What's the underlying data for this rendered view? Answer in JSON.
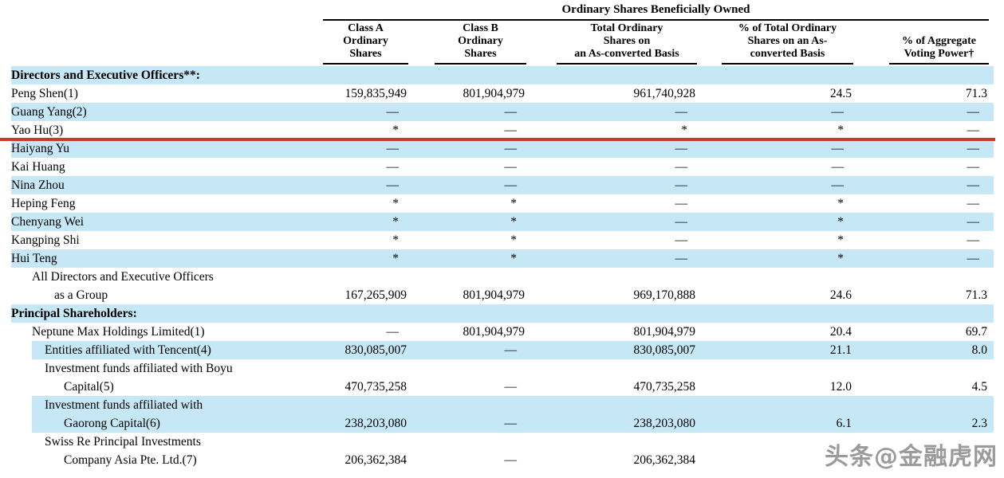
{
  "page": {
    "watermark": "头条@金融虎网"
  },
  "colors": {
    "highlight": "#c6e7f6",
    "red_line": "#c43a2f",
    "watermark": "#9b9b9b",
    "text": "#000000"
  },
  "table": {
    "span_header": "Ordinary Shares Beneficially Owned",
    "columns": [
      {
        "id": "class_a",
        "label_lines": [
          "Class A",
          "Ordinary",
          "Shares"
        ]
      },
      {
        "id": "class_b",
        "label_lines": [
          "Class B",
          "Ordinary",
          "Shares"
        ]
      },
      {
        "id": "total",
        "label_lines": [
          "Total Ordinary",
          "Shares on",
          "an As-converted Basis"
        ]
      },
      {
        "id": "pct_total",
        "label_lines": [
          "% of Total Ordinary",
          "Shares on an As-",
          "converted Basis"
        ]
      },
      {
        "id": "voting",
        "label_lines": [
          "% of Aggregate",
          "Voting Power†"
        ]
      }
    ],
    "rows": [
      {
        "lines": [
          "Directors and Executive Officers**:"
        ],
        "indents": [
          0
        ],
        "bold": true,
        "highlight": true,
        "values": [
          "",
          "",
          "",
          "",
          ""
        ]
      },
      {
        "lines": [
          "Peng Shen(1)"
        ],
        "indents": [
          0
        ],
        "values": [
          "159,835,949",
          "801,904,979",
          "961,740,928",
          "24.5",
          "71.3"
        ]
      },
      {
        "lines": [
          "Guang Yang(2)"
        ],
        "indents": [
          0
        ],
        "highlight": true,
        "values": [
          "—",
          "—",
          "—",
          "—",
          "—"
        ]
      },
      {
        "lines": [
          "Yao Hu(3)"
        ],
        "indents": [
          0
        ],
        "values": [
          "*",
          "—",
          "*",
          "*",
          "—"
        ],
        "red_line_below": true
      },
      {
        "lines": [
          "Haiyang Yu"
        ],
        "indents": [
          0
        ],
        "highlight": true,
        "values": [
          "—",
          "—",
          "—",
          "—",
          "—"
        ]
      },
      {
        "lines": [
          "Kai Huang"
        ],
        "indents": [
          0
        ],
        "values": [
          "—",
          "—",
          "—",
          "—",
          "—"
        ]
      },
      {
        "lines": [
          "Nina Zhou"
        ],
        "indents": [
          0
        ],
        "highlight": true,
        "values": [
          "—",
          "—",
          "—",
          "—",
          "—"
        ]
      },
      {
        "lines": [
          "Heping Feng"
        ],
        "indents": [
          0
        ],
        "values": [
          "*",
          "*",
          "—",
          "*",
          "—"
        ]
      },
      {
        "lines": [
          "Chenyang Wei"
        ],
        "indents": [
          0
        ],
        "highlight": true,
        "values": [
          "*",
          "*",
          "—",
          "*",
          "—"
        ]
      },
      {
        "lines": [
          "Kangping Shi"
        ],
        "indents": [
          0
        ],
        "values": [
          "*",
          "*",
          "—",
          "*",
          "—"
        ]
      },
      {
        "lines": [
          "Hui Teng"
        ],
        "indents": [
          0
        ],
        "highlight": true,
        "values": [
          "*",
          "*",
          "—",
          "*",
          "—"
        ]
      },
      {
        "lines": [
          "All Directors and Executive Officers",
          "as a Group"
        ],
        "indents": [
          26,
          54
        ],
        "values": [
          "167,265,909",
          "801,904,979",
          "969,170,888",
          "24.6",
          "71.3"
        ]
      },
      {
        "lines": [
          "Principal Shareholders:"
        ],
        "indents": [
          0
        ],
        "bold": true,
        "highlight": true,
        "values": [
          "",
          "",
          "",
          "",
          ""
        ]
      },
      {
        "lines": [
          "Neptune Max Holdings Limited(1)"
        ],
        "indents": [
          26
        ],
        "values": [
          "—",
          "801,904,979",
          "801,904,979",
          "20.4",
          "69.7"
        ]
      },
      {
        "lines": [
          "Entities affiliated with Tencent(4)"
        ],
        "indents": [
          42
        ],
        "highlight": true,
        "highlight_indent": true,
        "values": [
          "830,085,007",
          "—",
          "830,085,007",
          "21.1",
          "8.0"
        ]
      },
      {
        "lines": [
          "Investment funds affiliated with Boyu",
          "Capital(5)"
        ],
        "indents": [
          42,
          66
        ],
        "values": [
          "470,735,258",
          "—",
          "470,735,258",
          "12.0",
          "4.5"
        ]
      },
      {
        "lines": [
          "Investment funds affiliated with",
          "Gaorong Capital(6)"
        ],
        "indents": [
          42,
          66
        ],
        "highlight": true,
        "highlight_indent": true,
        "values": [
          "238,203,080",
          "—",
          "238,203,080",
          "6.1",
          "2.3"
        ]
      },
      {
        "lines": [
          "Swiss Re Principal Investments",
          "Company Asia Pte. Ltd.(7)"
        ],
        "indents": [
          42,
          66
        ],
        "values": [
          "206,362,384",
          "—",
          "206,362,384",
          "",
          ""
        ]
      }
    ]
  }
}
